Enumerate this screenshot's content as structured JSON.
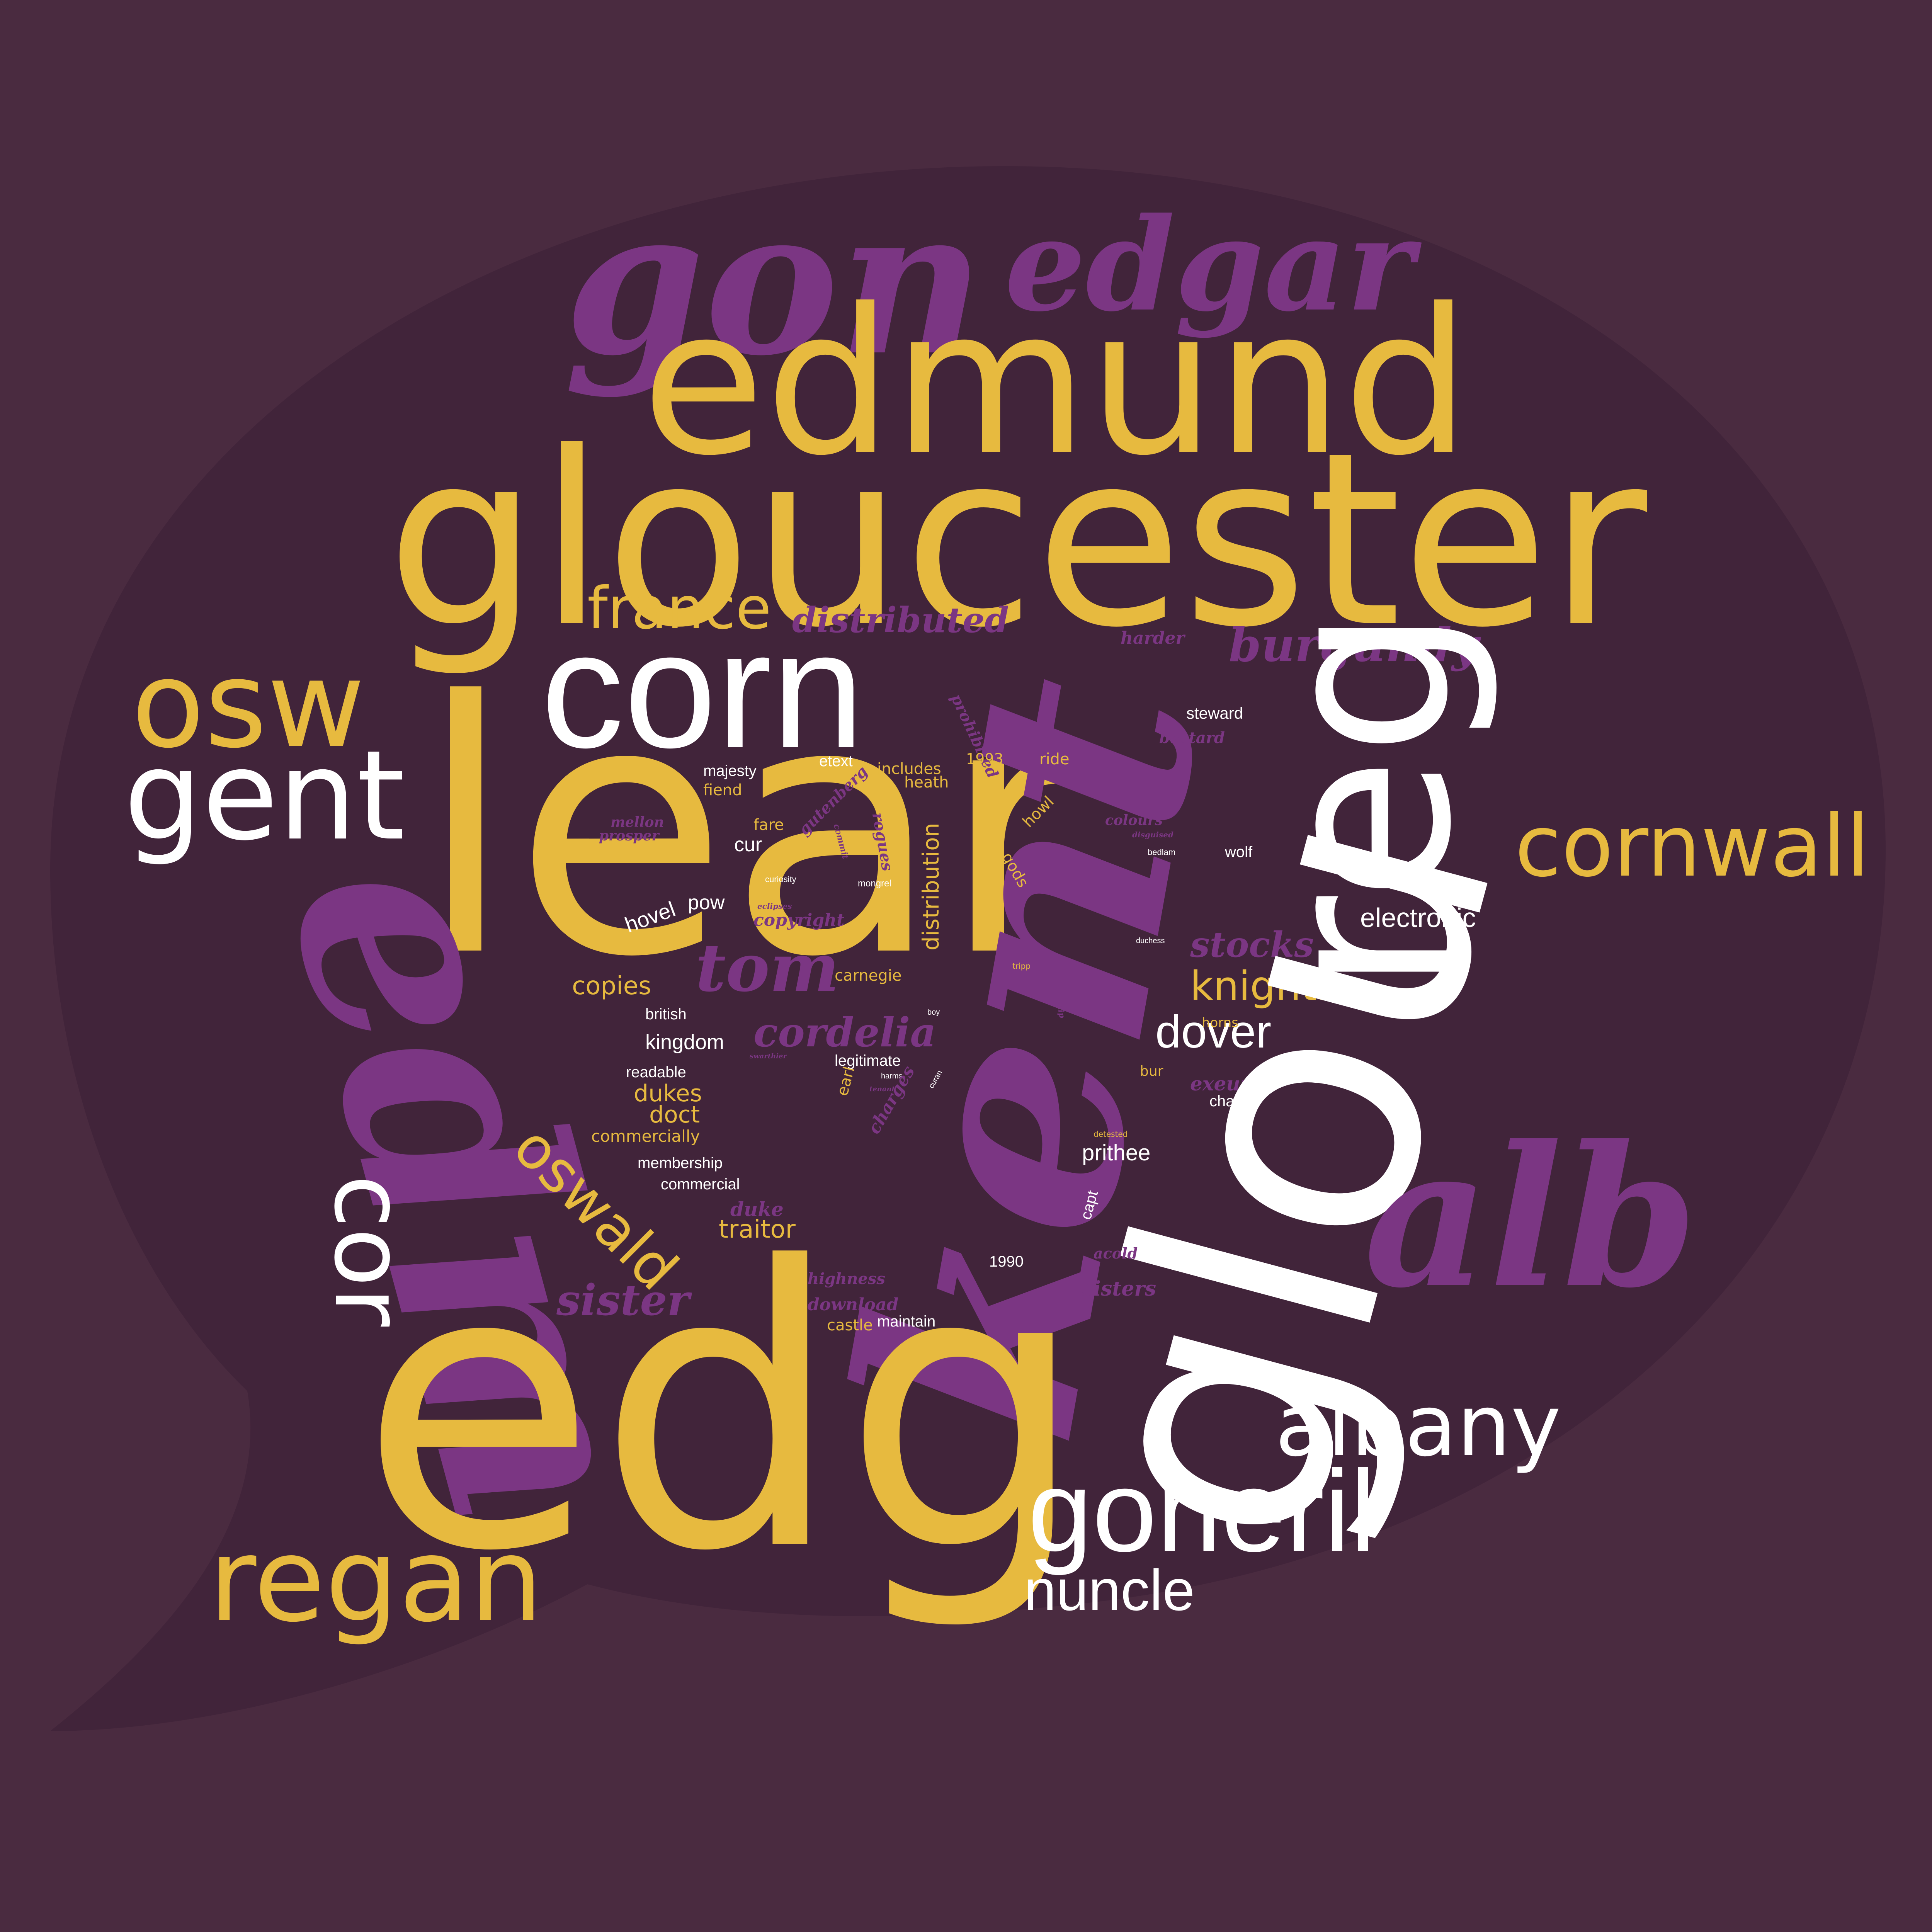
{
  "palette": {
    "background": "#4a2b40",
    "bubble": "#41243a",
    "gold": "#e7ba3f",
    "white": "#ffffff",
    "purple": "#7b3683"
  },
  "words": [
    {
      "text": "gon",
      "color": "purple"
    },
    {
      "text": "edgar",
      "color": "purple"
    },
    {
      "text": "edmund",
      "color": "gold"
    },
    {
      "text": "gloucester",
      "color": "gold"
    },
    {
      "text": "france",
      "color": "gold"
    },
    {
      "text": "distributed",
      "color": "purple"
    },
    {
      "text": "burgundy",
      "color": "purple"
    },
    {
      "text": "harder",
      "color": "purple"
    },
    {
      "text": "osw",
      "color": "gold"
    },
    {
      "text": "corn",
      "color": "white"
    },
    {
      "text": "reg",
      "color": "white"
    },
    {
      "text": "gent",
      "color": "white"
    },
    {
      "text": "lear",
      "color": "gold"
    },
    {
      "text": "kent",
      "color": "purple"
    },
    {
      "text": "cornwall",
      "color": "gold"
    },
    {
      "text": "steward",
      "color": "white"
    },
    {
      "text": "bastard",
      "color": "purple"
    },
    {
      "text": "prohibited",
      "color": "purple"
    },
    {
      "text": "majesty",
      "color": "white"
    },
    {
      "text": "etext",
      "color": "white"
    },
    {
      "text": "1993",
      "color": "gold"
    },
    {
      "text": "ride",
      "color": "gold"
    },
    {
      "text": "includes",
      "color": "gold"
    },
    {
      "text": "heath",
      "color": "gold"
    },
    {
      "text": "fiend",
      "color": "gold"
    },
    {
      "text": "mellon",
      "color": "purple"
    },
    {
      "text": "prosper",
      "color": "purple"
    },
    {
      "text": "fare",
      "color": "gold"
    },
    {
      "text": "gutenberg",
      "color": "purple"
    },
    {
      "text": "rogues",
      "color": "purple"
    },
    {
      "text": "commit",
      "color": "purple"
    },
    {
      "text": "colours",
      "color": "purple"
    },
    {
      "text": "disguised",
      "color": "purple"
    },
    {
      "text": "cur",
      "color": "white"
    },
    {
      "text": "howl",
      "color": "gold"
    },
    {
      "text": "gods",
      "color": "gold"
    },
    {
      "text": "wolf",
      "color": "white"
    },
    {
      "text": "bedlam",
      "color": "white"
    },
    {
      "text": "curiosity",
      "color": "white"
    },
    {
      "text": "mongrel",
      "color": "white"
    },
    {
      "text": "eclipses",
      "color": "purple"
    },
    {
      "text": "hovel",
      "color": "white"
    },
    {
      "text": "pow",
      "color": "white"
    },
    {
      "text": "copyright",
      "color": "purple"
    },
    {
      "text": "distribution",
      "color": "gold"
    },
    {
      "text": "electronic",
      "color": "white"
    },
    {
      "text": "edm",
      "color": "purple"
    },
    {
      "text": "tom",
      "color": "purple"
    },
    {
      "text": "stocks",
      "color": "purple"
    },
    {
      "text": "duchess",
      "color": "white"
    },
    {
      "text": "tripp",
      "color": "gold"
    },
    {
      "text": "carnegie",
      "color": "gold"
    },
    {
      "text": "copies",
      "color": "gold"
    },
    {
      "text": "knights",
      "color": "gold"
    },
    {
      "text": "british",
      "color": "white"
    },
    {
      "text": "cordelia",
      "color": "purple"
    },
    {
      "text": "boy",
      "color": "white"
    },
    {
      "text": "whip",
      "color": "purple"
    },
    {
      "text": "dover",
      "color": "white"
    },
    {
      "text": "horns",
      "color": "gold"
    },
    {
      "text": "kingdom",
      "color": "white"
    },
    {
      "text": "legitimate",
      "color": "white"
    },
    {
      "text": "readable",
      "color": "white"
    },
    {
      "text": "swarthier",
      "color": "purple"
    },
    {
      "text": "earl",
      "color": "gold"
    },
    {
      "text": "harms",
      "color": "white"
    },
    {
      "text": "tenant",
      "color": "purple"
    },
    {
      "text": "curan",
      "color": "white"
    },
    {
      "text": "charges",
      "color": "purple"
    },
    {
      "text": "bur",
      "color": "gold"
    },
    {
      "text": "exeunt",
      "color": "purple"
    },
    {
      "text": "dukes",
      "color": "gold"
    },
    {
      "text": "doct",
      "color": "gold"
    },
    {
      "text": "charg",
      "color": "white"
    },
    {
      "text": "glou",
      "color": "white"
    },
    {
      "text": "commercially",
      "color": "gold"
    },
    {
      "text": "oswald",
      "color": "gold"
    },
    {
      "text": "detested",
      "color": "gold"
    },
    {
      "text": "prithee",
      "color": "white"
    },
    {
      "text": "membership",
      "color": "white"
    },
    {
      "text": "commercial",
      "color": "white"
    },
    {
      "text": "capt",
      "color": "white"
    },
    {
      "text": "cor",
      "color": "white"
    },
    {
      "text": "duke",
      "color": "purple"
    },
    {
      "text": "traitor",
      "color": "gold"
    },
    {
      "text": "1990",
      "color": "white"
    },
    {
      "text": "acold",
      "color": "purple"
    },
    {
      "text": "highness",
      "color": "purple"
    },
    {
      "text": "alb",
      "color": "purple"
    },
    {
      "text": "sisters",
      "color": "purple"
    },
    {
      "text": "sister",
      "color": "purple"
    },
    {
      "text": "download",
      "color": "purple"
    },
    {
      "text": "castle",
      "color": "gold"
    },
    {
      "text": "maintain",
      "color": "white"
    },
    {
      "text": "edg",
      "color": "gold"
    },
    {
      "text": "albany",
      "color": "white"
    },
    {
      "text": "goneril",
      "color": "white"
    },
    {
      "text": "regan",
      "color": "gold"
    },
    {
      "text": "nuncle",
      "color": "white"
    }
  ]
}
